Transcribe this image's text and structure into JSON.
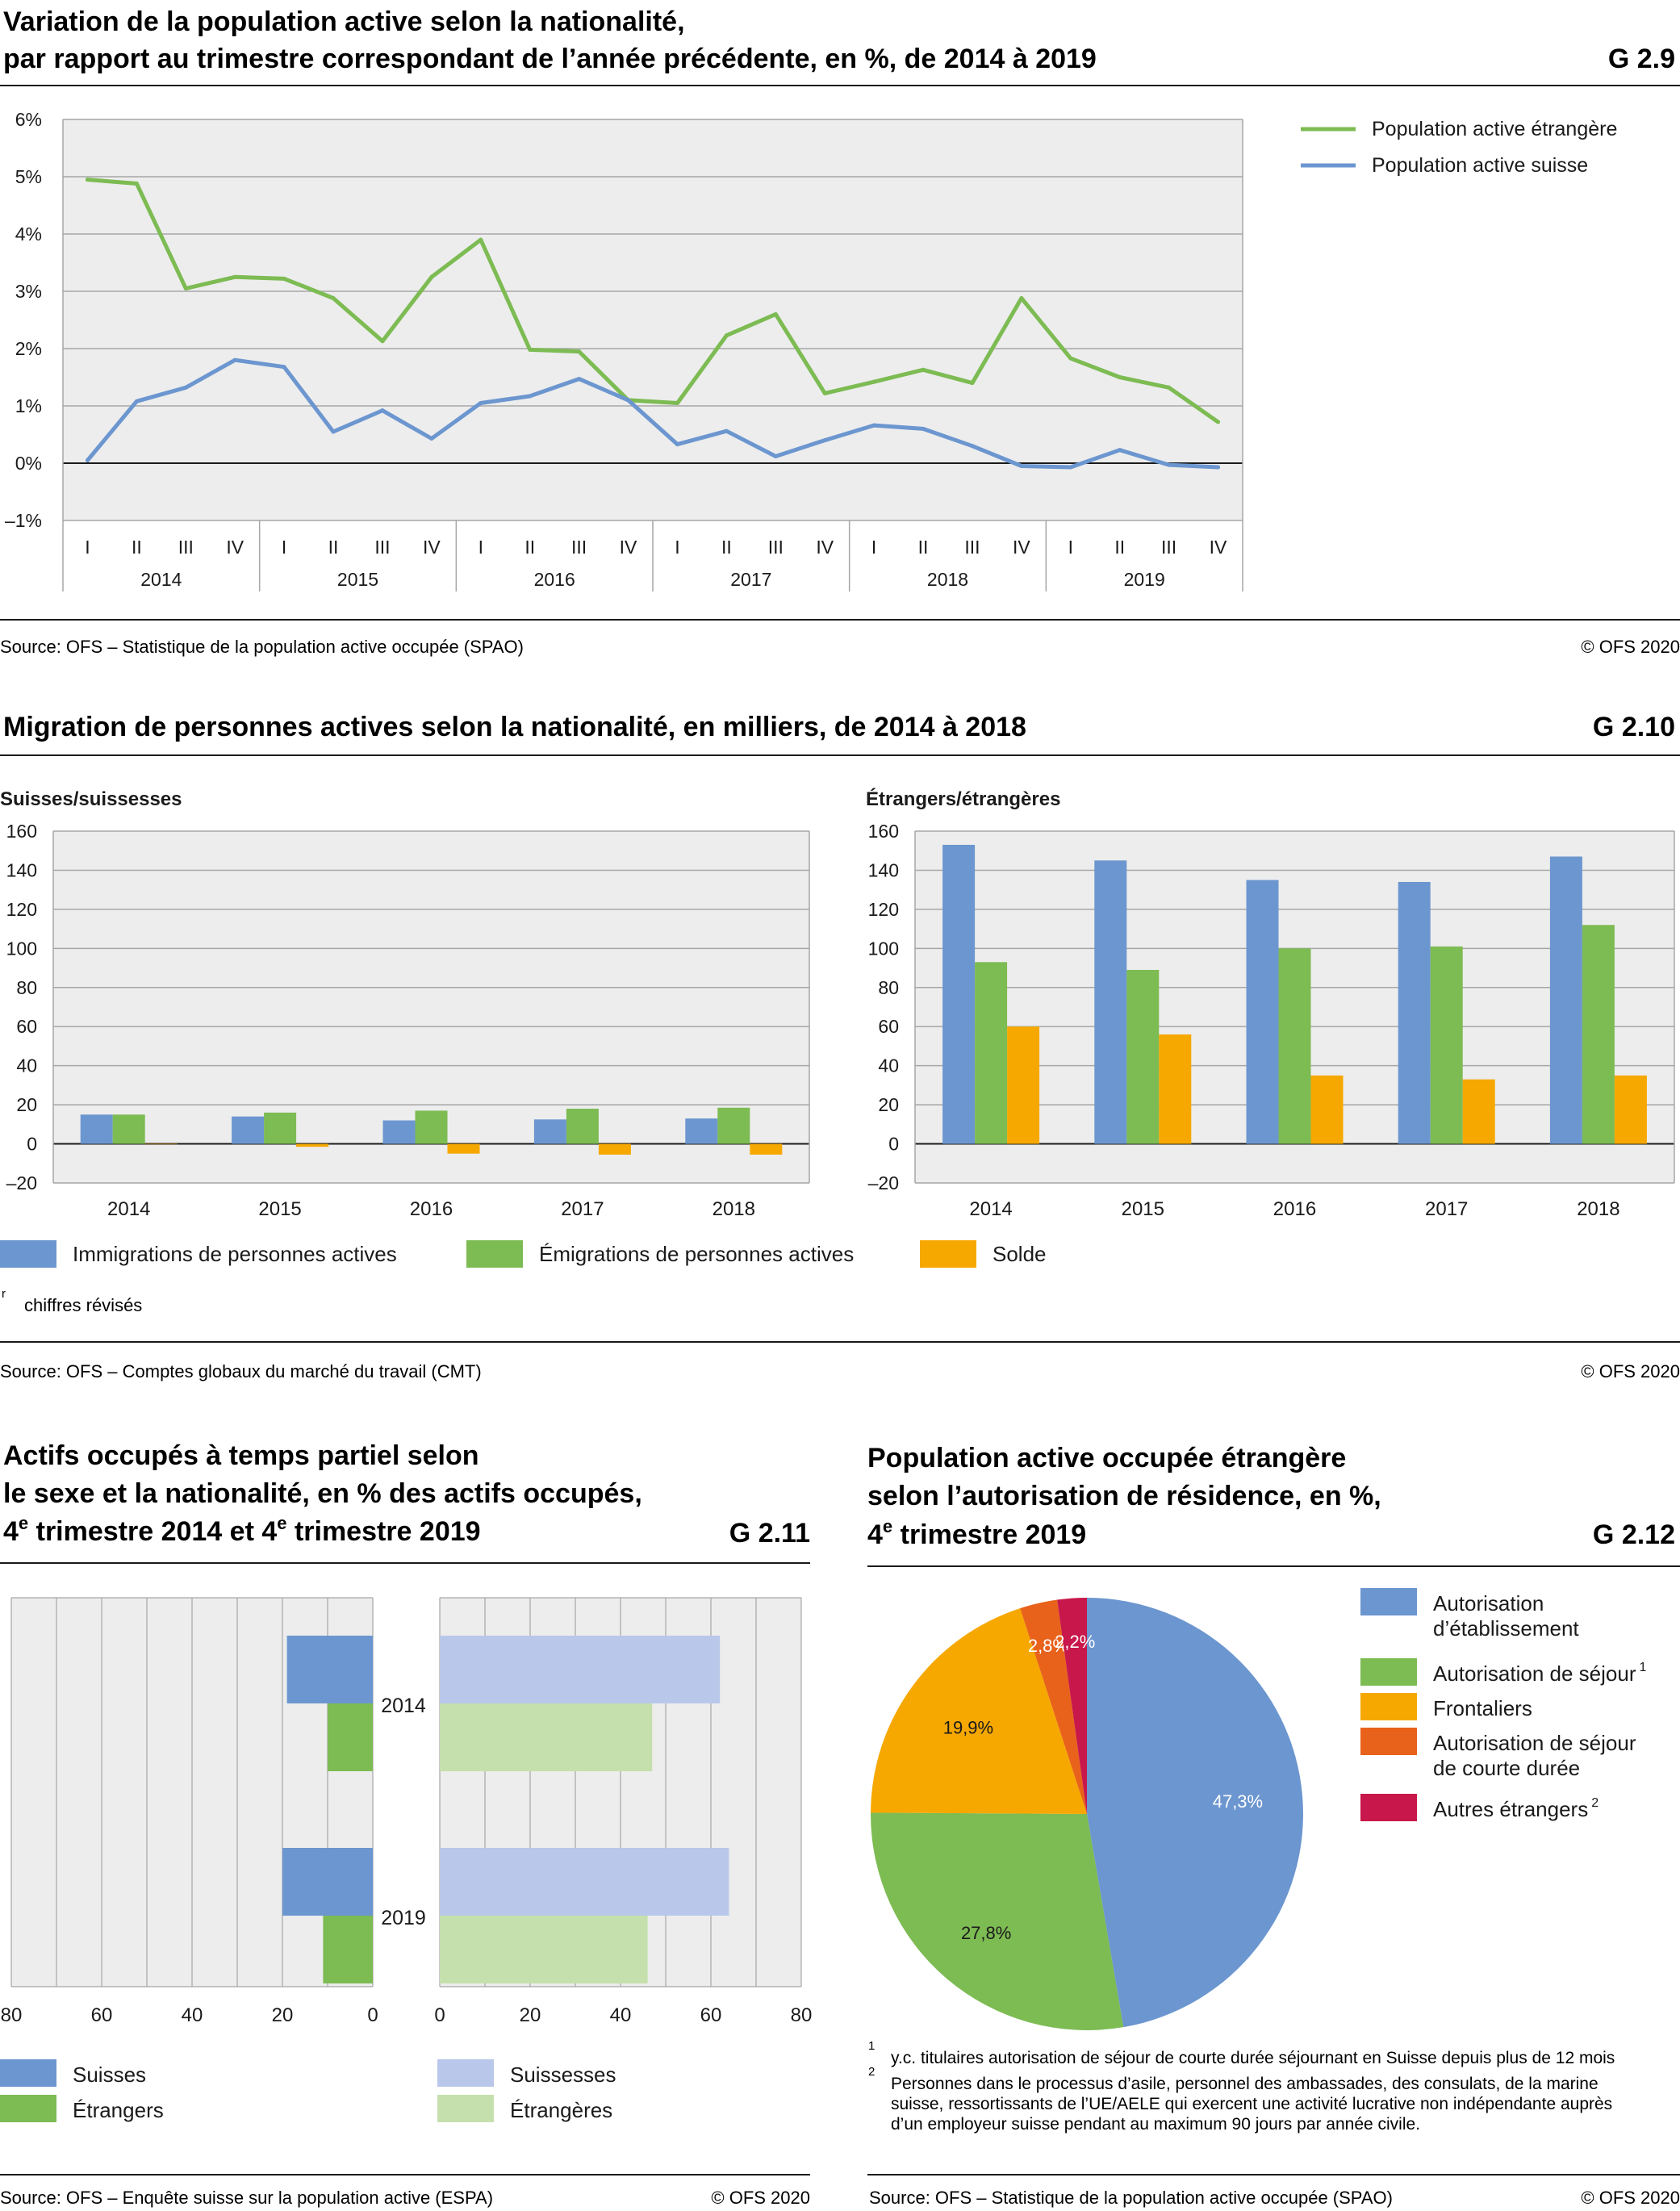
{
  "colors": {
    "blue": "#6c96cf",
    "green": "#7dbb53",
    "orange": "#f6a800",
    "light_blue": "#b9c8ea",
    "light_green": "#c5e0ac",
    "dark_orange": "#e8621b",
    "crimson": "#c8174a",
    "plot_bg": "#ededed",
    "grid": "#a6a6a6",
    "text": "#1a1a1a"
  },
  "g29": {
    "title_line1": "Variation de la population active selon la nationalité,",
    "title_line2": "par rapport au trimestre correspondant de l’année précédente, en %, de 2014 à 2019",
    "code": "G 2.9",
    "source": "Source: OFS – Statistique de la population active occupée (SPAO)",
    "copyright": "© OFS 2020"
  },
  "g210": {
    "title": "Migration de personnes actives selon la nationalité, en milliers, de 2014 à 2018",
    "code": "G 2.10",
    "footnote_mark": "r",
    "footnote": "chiffres révisés",
    "source": "Source: OFS – Comptes globaux du marché du travail (CMT)",
    "copyright": "© OFS 2020"
  },
  "g211": {
    "title_line1": "Actifs occupés à temps partiel selon",
    "title_line2": "le sexe et la nationalité, en % des actifs occupés,",
    "title_line3_a": "4",
    "title_line3_sup1": "e",
    "title_line3_b": " trimestre 2014 et 4",
    "title_line3_sup2": "e",
    "title_line3_c": " trimestre 2019",
    "code": "G 2.11",
    "source": "Source: OFS – Enquête suisse sur la population active (ESPA)",
    "copyright": "© OFS 2020"
  },
  "g212": {
    "title_line1": "Population active occupée étrangère",
    "title_line2": "selon l’autorisation de résidence, en %,",
    "title_line3_a": "4",
    "title_line3_sup": "e",
    "title_line3_b": " trimestre 2019",
    "code": "G 2.12",
    "fn1_mark": "1",
    "fn1": "y.c. titulaires autorisation de séjour de courte durée séjournant en Suisse depuis plus de 12 mois",
    "fn2_mark": "2",
    "fn2_line1": "Personnes dans le processus d’asile, personnel des ambassades, des consulats, de la marine",
    "fn2_line2": "suisse, ressortissants de l’UE/AELE qui exercent une activité lucrative non indépendante auprès",
    "fn2_line3": "d’un employeur suisse pendant au maximum 90 jours par année civile.",
    "source": "Source: OFS – Statistique de la population active occupée (SPAO)",
    "copyright": "© OFS 2020"
  },
  "chart_data": [
    {
      "id": "G2.9",
      "type": "line",
      "x_quarters": [
        "I",
        "II",
        "III",
        "IV",
        "I",
        "II",
        "III",
        "IV",
        "I",
        "II",
        "III",
        "IV",
        "I",
        "II",
        "III",
        "IV",
        "I",
        "II",
        "III",
        "IV",
        "I",
        "II",
        "III",
        "IV"
      ],
      "x_years": [
        "2014",
        "2015",
        "2016",
        "2017",
        "2018",
        "2019"
      ],
      "yticks": [
        "6%",
        "5%",
        "4%",
        "3%",
        "2%",
        "1%",
        "0%",
        "–1%"
      ],
      "ylim": [
        -1,
        6
      ],
      "legend_position": "top-right",
      "series": [
        {
          "name": "Population active étrangère",
          "color": "#7dbb53",
          "values": [
            4.95,
            4.88,
            3.05,
            3.25,
            3.22,
            2.88,
            2.13,
            3.25,
            3.9,
            1.98,
            1.95,
            1.1,
            1.05,
            2.23,
            2.6,
            1.22,
            1.42,
            1.63,
            1.4,
            2.88,
            1.83,
            1.5,
            1.32,
            0.72
          ]
        },
        {
          "name": "Population active suisse",
          "color": "#6c96cf",
          "values": [
            0.05,
            1.08,
            1.32,
            1.8,
            1.68,
            0.55,
            0.92,
            0.43,
            1.05,
            1.17,
            1.47,
            1.1,
            0.33,
            0.56,
            0.12,
            0.4,
            0.66,
            0.6,
            0.3,
            -0.05,
            -0.07,
            0.23,
            -0.03,
            -0.07
          ]
        }
      ]
    },
    {
      "id": "G2.10",
      "type": "bar",
      "panels": [
        {
          "title": "Suisses/suissesses",
          "categories": [
            "2014",
            "2015",
            "2016",
            "2017",
            "2018"
          ],
          "series": [
            {
              "name": "Immigrations de personnes actives",
              "color": "#6c96cf",
              "values": [
                15,
                14,
                12,
                12.5,
                13
              ]
            },
            {
              "name": "Émigrations de personnes actives",
              "color": "#7dbb53",
              "values": [
                15,
                16,
                17,
                18,
                18.5
              ]
            },
            {
              "name": "Solde",
              "color": "#f6a800",
              "values": [
                0,
                -1.5,
                -5,
                -5.5,
                -5.5
              ]
            }
          ]
        },
        {
          "title": "Étrangers/étrangères",
          "categories": [
            "2014",
            "2015",
            "2016",
            "2017",
            "2018"
          ],
          "series": [
            {
              "name": "Immigrations de personnes actives",
              "color": "#6c96cf",
              "values": [
                153,
                145,
                135,
                134,
                147
              ]
            },
            {
              "name": "Émigrations de personnes actives",
              "color": "#7dbb53",
              "values": [
                93,
                89,
                100,
                101,
                112
              ]
            },
            {
              "name": "Solde",
              "color": "#f6a800",
              "values": [
                60,
                56,
                35,
                33,
                35
              ]
            }
          ]
        }
      ],
      "yticks": [
        "160",
        "140",
        "120",
        "100",
        "80",
        "60",
        "40",
        "20",
        "0",
        "–20"
      ],
      "ylim": [
        -20,
        160
      ],
      "legend_position": "bottom"
    },
    {
      "id": "G2.11",
      "type": "bar",
      "orientation": "horizontal",
      "categories": [
        "2014",
        "2019"
      ],
      "left_panel": {
        "xticks": [
          "80",
          "60",
          "40",
          "20",
          "0"
        ],
        "xlim": [
          0,
          80
        ],
        "series": [
          {
            "name": "Suisses",
            "color": "#6c96cf",
            "values": [
              19,
              20
            ]
          },
          {
            "name": "Étrangers",
            "color": "#7dbb53",
            "values": [
              10,
              11
            ]
          }
        ]
      },
      "right_panel": {
        "xticks": [
          "0",
          "20",
          "40",
          "60",
          "80"
        ],
        "xlim": [
          0,
          80
        ],
        "series": [
          {
            "name": "Suissesses",
            "color": "#b9c8ea",
            "values": [
              62,
              64
            ]
          },
          {
            "name": "Étrangères",
            "color": "#c5e0ac",
            "values": [
              47,
              46
            ]
          }
        ]
      },
      "legend_position": "bottom"
    },
    {
      "id": "G2.12",
      "type": "pie",
      "slices": [
        {
          "name": "Autorisation d’établissement",
          "label_line1": "Autorisation",
          "label_line2": "d’établissement",
          "value": 47.3,
          "label": "47,3%",
          "color": "#6c96cf"
        },
        {
          "name": "Autorisation de séjour",
          "label_line1": "Autorisation de séjour",
          "sup": "1",
          "value": 27.8,
          "label": "27,8%",
          "color": "#7dbb53"
        },
        {
          "name": "Frontaliers",
          "label_line1": "Frontaliers",
          "value": 19.9,
          "label": "19,9%",
          "color": "#f6a800"
        },
        {
          "name": "Autorisation de séjour de courte durée",
          "label_line1": "Autorisation de séjour",
          "label_line2": "de courte durée",
          "value": 2.8,
          "label": "2,8%",
          "color": "#e8621b"
        },
        {
          "name": "Autres étrangers",
          "label_line1": "Autres étrangers",
          "sup": "2",
          "value": 2.2,
          "label": "2,2%",
          "color": "#c8174a"
        }
      ],
      "legend_position": "right"
    }
  ]
}
